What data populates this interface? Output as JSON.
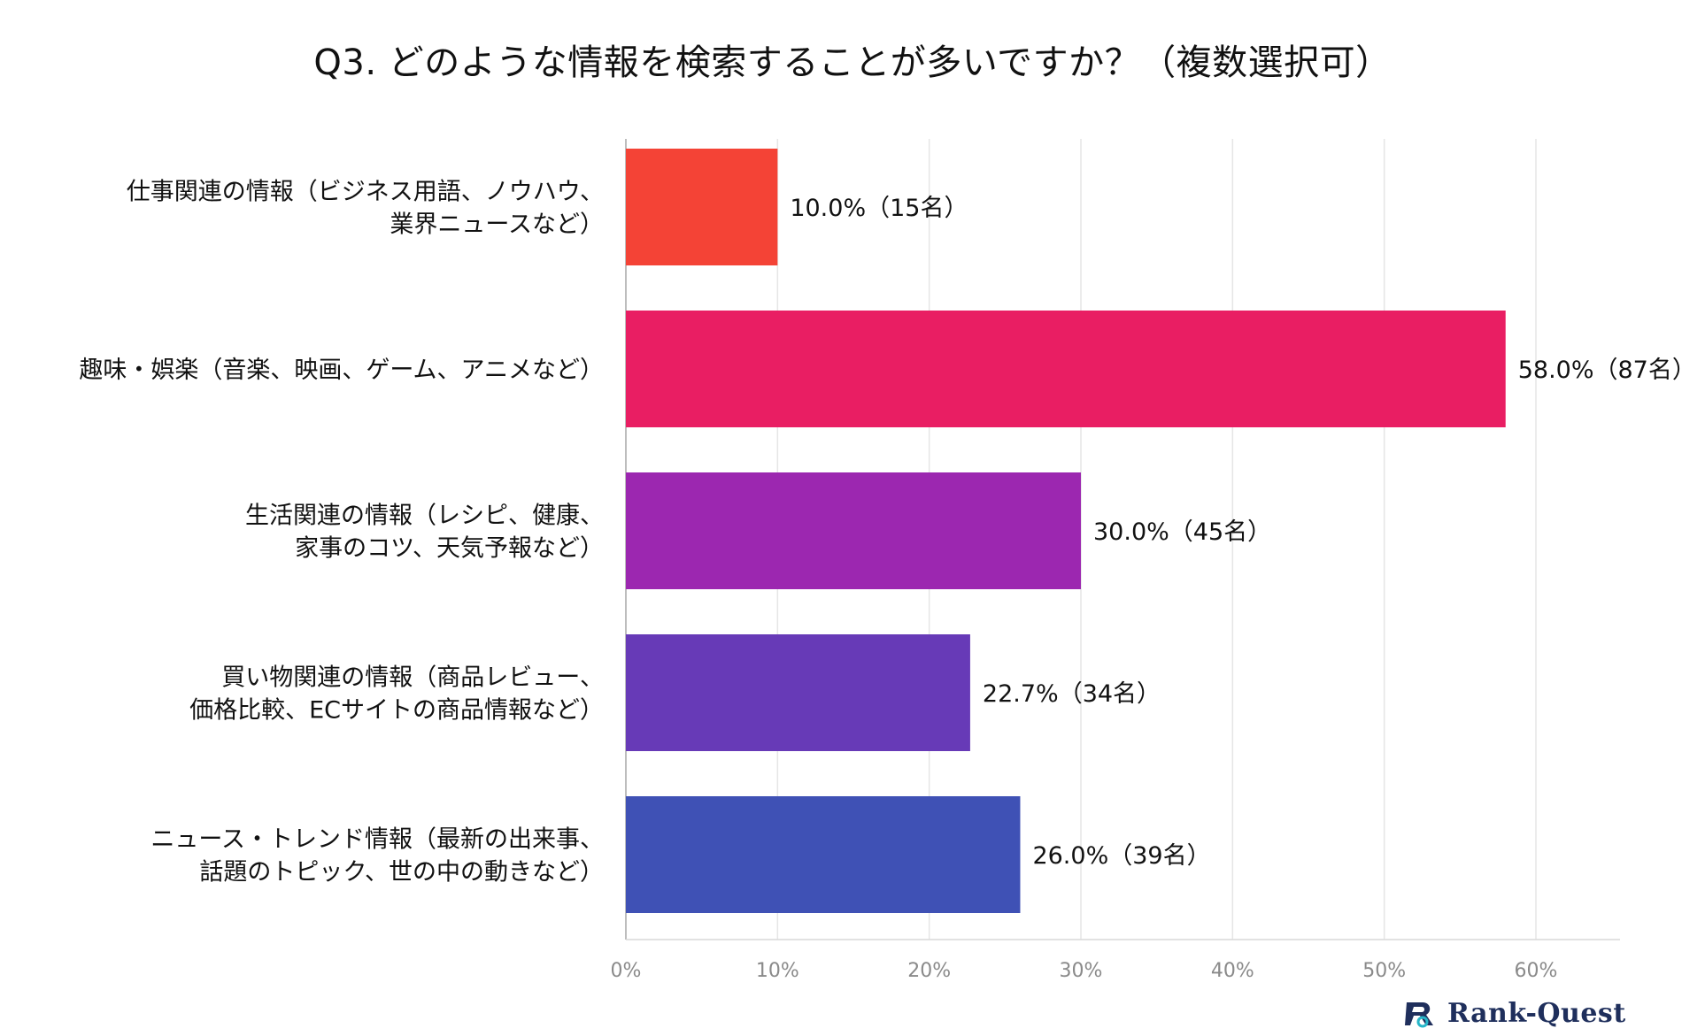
{
  "chart_data": {
    "type": "bar",
    "orientation": "horizontal",
    "title": "Q3. どのような情報を検索することが多いですか？（複数選択可）",
    "categories": [
      [
        "仕事関連の情報（ビジネス用語、ノウハウ、",
        "業界ニュースなど）"
      ],
      [
        "趣味・娯楽（音楽、映画、ゲーム、アニメなど）"
      ],
      [
        "生活関連の情報（レシピ、健康、",
        "家事のコツ、天気予報など）"
      ],
      [
        "買い物関連の情報（商品レビュー、",
        "価格比較、ECサイトの商品情報など）"
      ],
      [
        "ニュース・トレンド情報（最新の出来事、",
        "話題のトピック、世の中の動きなど）"
      ]
    ],
    "values": [
      10.0,
      58.0,
      30.0,
      22.7,
      26.0
    ],
    "data_labels": [
      "10.0%（15名）",
      "58.0%（87名）",
      "30.0%（45名）",
      "22.7%（34名）",
      "26.0%（39名）"
    ],
    "colors": [
      "#f44336",
      "#e91e63",
      "#9c27b0",
      "#673ab7",
      "#3f51b5"
    ],
    "xlim": [
      0,
      65
    ],
    "xticks": [
      0,
      10,
      20,
      30,
      40,
      50,
      60
    ],
    "xtick_labels": [
      "0%",
      "10%",
      "20%",
      "30%",
      "40%",
      "50%",
      "60%"
    ],
    "grid": true,
    "legend": "none"
  },
  "brand": {
    "name": "Rank-Quest",
    "icon": "rank-quest-logo-icon"
  }
}
